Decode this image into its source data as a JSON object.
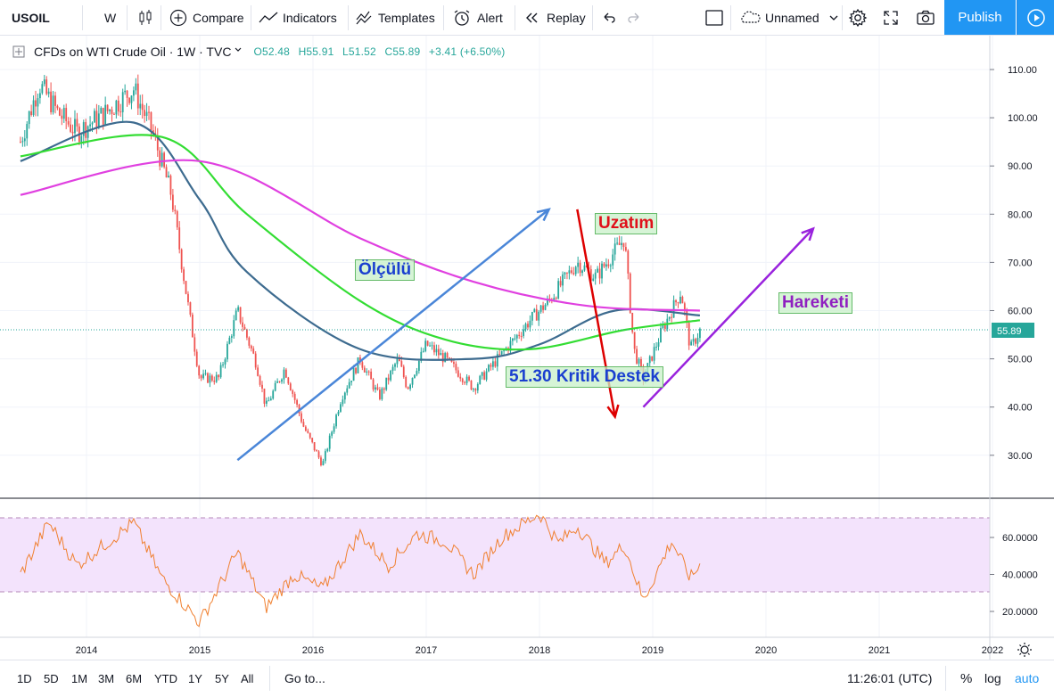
{
  "toolbar": {
    "symbol": "USOIL",
    "interval": "W",
    "compare": "Compare",
    "indicators": "Indicators",
    "templates": "Templates",
    "alert": "Alert",
    "replay": "Replay",
    "layout_name": "Unnamed",
    "publish": "Publish"
  },
  "legend": {
    "title": "CFDs on WTI Crude Oil · 1W · TVC",
    "open": "O52.48",
    "high": "H55.91",
    "low": "L51.52",
    "close": "C55.89",
    "change": "+3.41 (+6.50%)"
  },
  "annotations": {
    "measured": "Ölçülü",
    "extension": "Uzatım",
    "movement": "Hareketi",
    "support": "51.30 Kritik Destek"
  },
  "price_axis": {
    "labels": [
      "110.00",
      "100.00",
      "90.00",
      "80.00",
      "70.00",
      "60.00",
      "50.00",
      "40.00",
      "30.00"
    ],
    "last_price": "55.89"
  },
  "rsi_axis": {
    "labels": [
      "60.0000",
      "40.0000",
      "20.0000"
    ]
  },
  "time_axis": {
    "labels": [
      "2014",
      "2015",
      "2016",
      "2017",
      "2018",
      "2019",
      "2020",
      "2021",
      "2022"
    ]
  },
  "bottombar": {
    "ranges": [
      "1D",
      "5D",
      "1M",
      "3M",
      "6M",
      "YTD",
      "1Y",
      "5Y",
      "All"
    ],
    "goto": "Go to...",
    "time": "11:26:01 (UTC)",
    "percent": "%",
    "log": "log",
    "auto": "auto"
  },
  "colors": {
    "up": "#26a69a",
    "down": "#ef5350",
    "ma_short": "#3d6b8f",
    "ma_mid": "#33dd33",
    "ma_long": "#e040e0",
    "rsi": "#f08030",
    "accent": "#2196f3"
  },
  "chart_data": {
    "type": "candlestick",
    "symbol": "USOIL",
    "interval": "1W",
    "ylim": [
      21,
      115
    ],
    "close_path": [
      {
        "x": "2013-06",
        "y": 95
      },
      {
        "x": "2013-08",
        "y": 107
      },
      {
        "x": "2013-10",
        "y": 101
      },
      {
        "x": "2013-12",
        "y": 97
      },
      {
        "x": "2014-03",
        "y": 101
      },
      {
        "x": "2014-06",
        "y": 106
      },
      {
        "x": "2014-08",
        "y": 97
      },
      {
        "x": "2014-10",
        "y": 84
      },
      {
        "x": "2014-12",
        "y": 58
      },
      {
        "x": "2015-01",
        "y": 46
      },
      {
        "x": "2015-03",
        "y": 46
      },
      {
        "x": "2015-05",
        "y": 60
      },
      {
        "x": "2015-07",
        "y": 49
      },
      {
        "x": "2015-08",
        "y": 40
      },
      {
        "x": "2015-10",
        "y": 48
      },
      {
        "x": "2015-12",
        "y": 36
      },
      {
        "x": "2016-02",
        "y": 28
      },
      {
        "x": "2016-04",
        "y": 42
      },
      {
        "x": "2016-06",
        "y": 50
      },
      {
        "x": "2016-08",
        "y": 42
      },
      {
        "x": "2016-10",
        "y": 50
      },
      {
        "x": "2016-11",
        "y": 44
      },
      {
        "x": "2017-01",
        "y": 53
      },
      {
        "x": "2017-03",
        "y": 50
      },
      {
        "x": "2017-06",
        "y": 44
      },
      {
        "x": "2017-09",
        "y": 51
      },
      {
        "x": "2017-12",
        "y": 58
      },
      {
        "x": "2018-02",
        "y": 62
      },
      {
        "x": "2018-05",
        "y": 70
      },
      {
        "x": "2018-07",
        "y": 67
      },
      {
        "x": "2018-10",
        "y": 75
      },
      {
        "x": "2018-11",
        "y": 52
      },
      {
        "x": "2018-12",
        "y": 46
      },
      {
        "x": "2019-02",
        "y": 56
      },
      {
        "x": "2019-04",
        "y": 64
      },
      {
        "x": "2019-05",
        "y": 52
      },
      {
        "x": "2019-06",
        "y": 55.89
      }
    ],
    "moving_averages": [
      {
        "color": "#3d6b8f",
        "points": [
          {
            "x": "2013-06",
            "y": 91
          },
          {
            "x": "2014-06",
            "y": 99
          },
          {
            "x": "2015-01",
            "y": 83
          },
          {
            "x": "2015-06",
            "y": 68
          },
          {
            "x": "2016-06",
            "y": 52
          },
          {
            "x": "2017-06",
            "y": 50
          },
          {
            "x": "2018-01",
            "y": 53
          },
          {
            "x": "2018-09",
            "y": 60
          },
          {
            "x": "2019-06",
            "y": 59
          }
        ]
      },
      {
        "color": "#33dd33",
        "points": [
          {
            "x": "2013-06",
            "y": 92
          },
          {
            "x": "2014-09",
            "y": 96
          },
          {
            "x": "2015-06",
            "y": 80
          },
          {
            "x": "2016-06",
            "y": 62
          },
          {
            "x": "2017-03",
            "y": 54
          },
          {
            "x": "2017-12",
            "y": 52
          },
          {
            "x": "2018-10",
            "y": 56
          },
          {
            "x": "2019-06",
            "y": 58
          }
        ]
      },
      {
        "color": "#e040e0",
        "points": [
          {
            "x": "2013-06",
            "y": 84
          },
          {
            "x": "2015-01",
            "y": 91
          },
          {
            "x": "2016-06",
            "y": 75
          },
          {
            "x": "2017-06",
            "y": 66
          },
          {
            "x": "2018-06",
            "y": 61
          },
          {
            "x": "2019-06",
            "y": 60
          }
        ]
      }
    ],
    "rsi": {
      "band": [
        30,
        70
      ],
      "path": [
        {
          "x": "2013-06",
          "y": 40
        },
        {
          "x": "2013-09",
          "y": 68
        },
        {
          "x": "2013-12",
          "y": 45
        },
        {
          "x": "2014-06",
          "y": 68
        },
        {
          "x": "2014-09",
          "y": 38
        },
        {
          "x": "2015-01",
          "y": 14
        },
        {
          "x": "2015-05",
          "y": 52
        },
        {
          "x": "2015-08",
          "y": 22
        },
        {
          "x": "2015-11",
          "y": 40
        },
        {
          "x": "2016-02",
          "y": 32
        },
        {
          "x": "2016-06",
          "y": 62
        },
        {
          "x": "2016-09",
          "y": 45
        },
        {
          "x": "2016-12",
          "y": 62
        },
        {
          "x": "2017-03",
          "y": 58
        },
        {
          "x": "2017-06",
          "y": 40
        },
        {
          "x": "2017-09",
          "y": 60
        },
        {
          "x": "2018-01",
          "y": 73
        },
        {
          "x": "2018-03",
          "y": 57
        },
        {
          "x": "2018-05",
          "y": 66
        },
        {
          "x": "2018-08",
          "y": 46
        },
        {
          "x": "2018-10",
          "y": 56
        },
        {
          "x": "2018-12",
          "y": 26
        },
        {
          "x": "2019-03",
          "y": 58
        },
        {
          "x": "2019-05",
          "y": 38
        },
        {
          "x": "2019-06",
          "y": 45
        }
      ]
    },
    "annotation_arrows": [
      {
        "label": "Ölçülü",
        "color": "#4a86d8",
        "from": {
          "x": "2015-05",
          "y": 29
        },
        "to": {
          "x": "2018-02",
          "y": 81
        }
      },
      {
        "label": "Uzatım",
        "color": "#dd0000",
        "from": {
          "x": "2018-05",
          "y": 81
        },
        "to": {
          "x": "2018-09",
          "y": 38
        }
      },
      {
        "label": "Hareketi",
        "color": "#9922dd",
        "from": {
          "x": "2018-12",
          "y": 40
        },
        "to": {
          "x": "2020-06",
          "y": 77
        }
      }
    ]
  }
}
